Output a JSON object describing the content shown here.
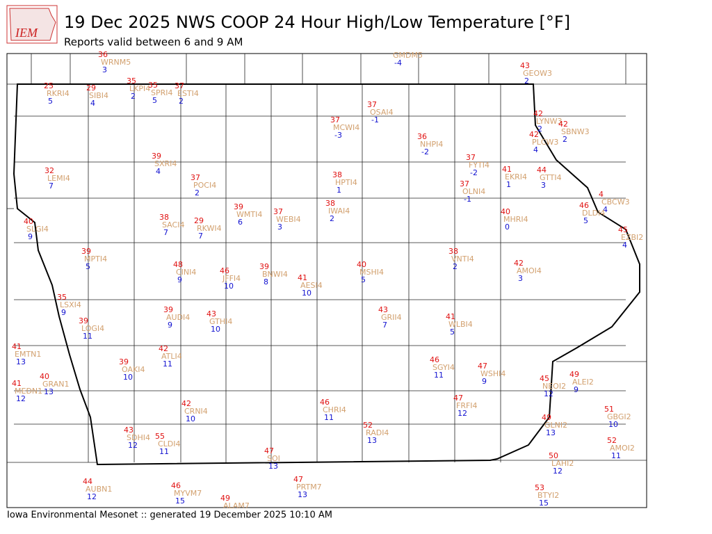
{
  "header": {
    "logo_text": "IEM",
    "title": "19 Dec 2025 NWS COOP 24 Hour High/Low Temperature [°F]",
    "subtitle": "Reports valid between 6 and 9 AM"
  },
  "footer": "Iowa Environmental Mesonet :: generated 19 December 2025 10:10 AM",
  "colors": {
    "high": "#e01010",
    "name": "#d2a06e",
    "low": "#1010d0"
  },
  "stations": [
    {
      "high": 36,
      "name": "WRNM5",
      "low": 3
    },
    {
      "name": "GMDM5",
      "low": -4
    },
    {
      "high": 43,
      "name": "GEOW3",
      "low": 2
    },
    {
      "high": 25,
      "name": "RKRI4",
      "low": 5
    },
    {
      "high": 29,
      "name": "SIBI4",
      "low": 4
    },
    {
      "high": 35,
      "name": "LKPI4",
      "low": 2
    },
    {
      "high": 35,
      "name": "SPRI4",
      "low": 5
    },
    {
      "high": 37,
      "name": "ESTI4",
      "low": 2
    },
    {
      "high": 37,
      "name": "OSAI4",
      "low": -1
    },
    {
      "high": 37,
      "name": "MCWI4",
      "low": -3
    },
    {
      "high": 42,
      "name": "LYNW3",
      "low": 2
    },
    {
      "high": 42,
      "name": "SBNW3",
      "low": 2
    },
    {
      "high": 42,
      "name": "PLCW3",
      "low": 4
    },
    {
      "high": 36,
      "name": "NHPI4",
      "low": -2
    },
    {
      "high": 39,
      "name": "SXRI4",
      "low": 4
    },
    {
      "high": 32,
      "name": "LEMI4",
      "low": 7
    },
    {
      "high": 37,
      "name": "POCI4",
      "low": 2
    },
    {
      "high": 38,
      "name": "HPTI4",
      "low": 1
    },
    {
      "high": 37,
      "name": "FYTI4",
      "low": -2
    },
    {
      "high": 41,
      "name": "EKRI4",
      "low": 1
    },
    {
      "high": 44,
      "name": "GTTI4",
      "low": 3
    },
    {
      "high": 37,
      "name": "OLNI4",
      "low": -1
    },
    {
      "high": 4,
      "name": "CBCW3",
      "low": 4
    },
    {
      "high": 38,
      "name": "IWAI4",
      "low": 2
    },
    {
      "high": 39,
      "name": "WMTI4",
      "low": 6
    },
    {
      "high": 37,
      "name": "WEBI4",
      "low": 3
    },
    {
      "high": 46,
      "name": "DLDI4",
      "low": 5
    },
    {
      "high": 40,
      "name": "MHRI4",
      "low": 0
    },
    {
      "high": 45,
      "name": "EZBI2",
      "low": 4
    },
    {
      "high": 40,
      "name": "SLGI4",
      "low": 9
    },
    {
      "high": 38,
      "name": "SACI4",
      "low": 7
    },
    {
      "high": 29,
      "name": "RKWI4",
      "low": 7
    },
    {
      "high": 39,
      "name": "MPTI4",
      "low": 5
    },
    {
      "high": 38,
      "name": "VNTI4",
      "low": 2
    },
    {
      "high": 48,
      "name": "CINI4",
      "low": 9
    },
    {
      "high": 46,
      "name": "JFFI4",
      "low": 10
    },
    {
      "high": 39,
      "name": "BNWI4",
      "low": 8
    },
    {
      "high": 41,
      "name": "AESI4",
      "low": 10
    },
    {
      "high": 40,
      "name": "MSHI4",
      "low": 5
    },
    {
      "high": 42,
      "name": "AMOI4",
      "low": 3
    },
    {
      "high": 35,
      "name": "LSXI4",
      "low": 9
    },
    {
      "high": 39,
      "name": "LOGI4",
      "low": 11
    },
    {
      "high": 39,
      "name": "AUDI4",
      "low": 9
    },
    {
      "high": 43,
      "name": "GTHI4",
      "low": 10
    },
    {
      "high": 43,
      "name": "GRII4",
      "low": 7
    },
    {
      "high": 41,
      "name": "WLBI4",
      "low": 5
    },
    {
      "high": 41,
      "name": "EMTN1",
      "low": 13
    },
    {
      "high": 42,
      "name": "ATLI4",
      "low": 11
    },
    {
      "high": 39,
      "name": "OAKI4",
      "low": 10
    },
    {
      "high": 46,
      "name": "SGYI4",
      "low": 11
    },
    {
      "high": 47,
      "name": "WSHI4",
      "low": 9
    },
    {
      "high": 45,
      "name": "NEOI2",
      "low": 12
    },
    {
      "high": 49,
      "name": "ALEI2",
      "low": 9
    },
    {
      "high": 41,
      "name": "MEDN1",
      "low": 12
    },
    {
      "high": 40,
      "name": "GRAN1",
      "low": 13
    },
    {
      "high": 42,
      "name": "CRNI4",
      "low": 10
    },
    {
      "high": 46,
      "name": "CHRI4",
      "low": 11
    },
    {
      "high": 47,
      "name": "FRFI4",
      "low": 12
    },
    {
      "high": 51,
      "name": "GBGI2",
      "low": 10
    },
    {
      "high": 49,
      "name": "GLNI2",
      "low": 13
    },
    {
      "high": 52,
      "name": "RADI4",
      "low": 13
    },
    {
      "high": 43,
      "name": "SDHI4",
      "low": 12
    },
    {
      "high": 55,
      "name": "CLDI4",
      "low": 11
    },
    {
      "high": 52,
      "name": "AMOI2",
      "low": 11
    },
    {
      "high": 47,
      "name": "SOI",
      "low": 13
    },
    {
      "high": 50,
      "name": "LAHI2",
      "low": 12
    },
    {
      "high": 47,
      "name": "PRTM7",
      "low": 13
    },
    {
      "high": 44,
      "name": "AUBN1",
      "low": 12
    },
    {
      "high": 46,
      "name": "MYVM7",
      "low": 15
    },
    {
      "high": 53,
      "name": "BTYI2",
      "low": 15
    },
    {
      "high": 49,
      "name": "ALAM7"
    }
  ]
}
